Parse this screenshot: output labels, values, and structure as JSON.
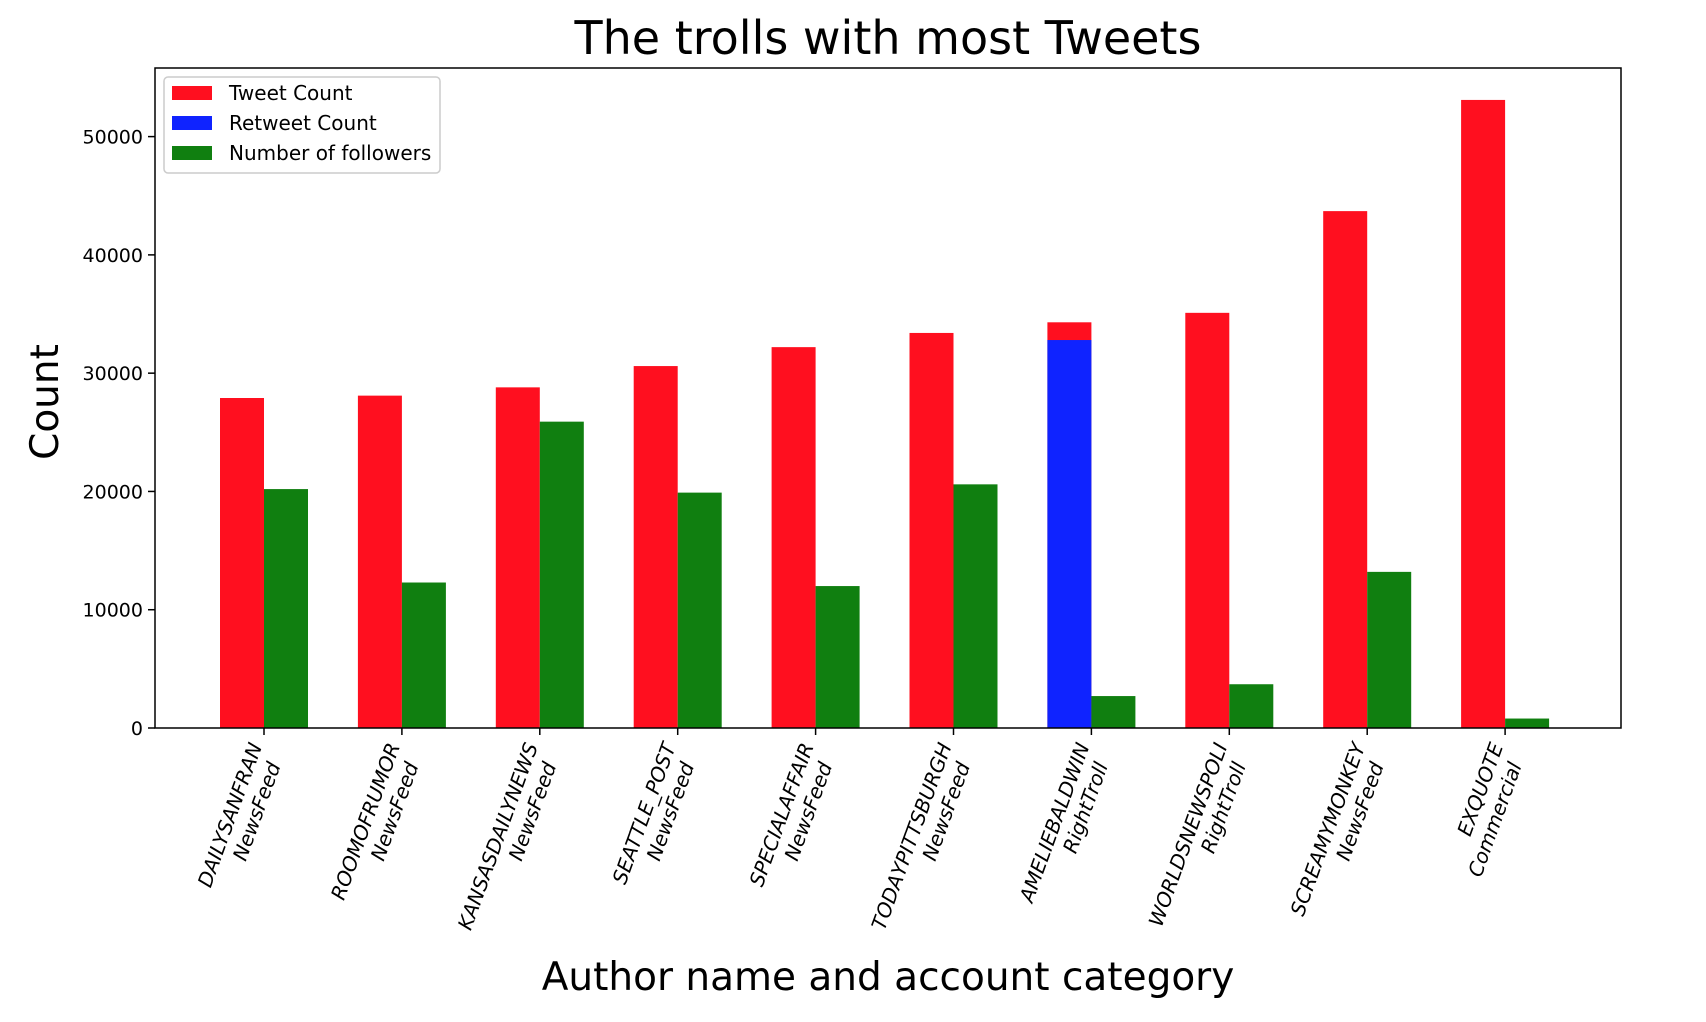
{
  "chart_data": {
    "type": "bar",
    "title": "The trolls with most Tweets",
    "xlabel": "Author name and account category",
    "ylabel": "Count",
    "ylim": [
      0,
      55800
    ],
    "yticks": [
      0,
      10000,
      20000,
      30000,
      40000,
      50000
    ],
    "categories": [
      {
        "name": "DAILYSANFRAN",
        "category": "NewsFeed"
      },
      {
        "name": "ROOMOFRUMOR",
        "category": "NewsFeed"
      },
      {
        "name": "KANSASDAILYNEWS",
        "category": "NewsFeed"
      },
      {
        "name": "SEATTLE_POST",
        "category": "NewsFeed"
      },
      {
        "name": "SPECIALAFFAIR",
        "category": "NewsFeed"
      },
      {
        "name": "TODAYPITTSBURGH",
        "category": "NewsFeed"
      },
      {
        "name": "AMELIEBALDWIN",
        "category": "RightTroll"
      },
      {
        "name": "WORLDSNEWSPOLI",
        "category": "RightTroll"
      },
      {
        "name": "SCREAMYMONKEY",
        "category": "NewsFeed"
      },
      {
        "name": "EXQUOTE",
        "category": "Commercial"
      }
    ],
    "series": [
      {
        "name": "Tweet Count",
        "color": "#ff0f1f",
        "values": [
          27900,
          28100,
          28800,
          30600,
          32200,
          33400,
          34300,
          35100,
          43700,
          53100
        ]
      },
      {
        "name": "Retweet Count",
        "color": "#0f23ff",
        "values": [
          0,
          0,
          0,
          0,
          0,
          0,
          32800,
          0,
          0,
          0
        ]
      },
      {
        "name": "Number of followers",
        "color": "#107f10",
        "values": [
          20200,
          12300,
          25900,
          19900,
          12000,
          20600,
          2700,
          3700,
          13200,
          800
        ]
      }
    ],
    "legend_position": "top-left",
    "grid": false
  }
}
